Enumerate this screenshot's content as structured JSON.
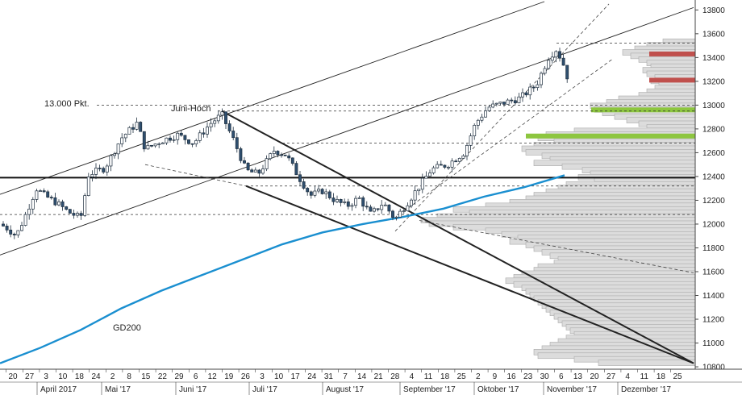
{
  "chart_data": {
    "type": "candlestick",
    "instrument_scale": "DAX points",
    "y_axis": {
      "position": "right",
      "ticks": [
        10800,
        11000,
        11200,
        11400,
        11600,
        11800,
        12000,
        12200,
        12400,
        12600,
        12800,
        13000,
        13200,
        13400,
        13600,
        13800
      ],
      "ylim": [
        10780,
        13870
      ]
    },
    "x_axis": {
      "day_ticks": [
        "20",
        "27",
        "3",
        "10",
        "18",
        "24",
        "2",
        "8",
        "15",
        "22",
        "29",
        "6",
        "12",
        "19",
        "26",
        "3",
        "10",
        "17",
        "24",
        "31",
        "7",
        "14",
        "21",
        "28",
        "4",
        "11",
        "18",
        "25",
        "2",
        "9",
        "16",
        "23",
        "30",
        "6",
        "13",
        "20",
        "27",
        "4",
        "11",
        "18",
        "25"
      ],
      "month_labels": [
        "April 2017",
        "Mai '17",
        "Juni '17",
        "Juli '17",
        "August '17",
        "September '17",
        "Oktober '17",
        "November '17",
        "Dezember '17"
      ]
    },
    "annotations": {
      "level_13000": "13.000 Pkt.",
      "june_high": "Juni-Hoch",
      "ma_label": "GD200"
    },
    "horizontal_levels": [
      {
        "kind": "support-bold",
        "value": 12390
      },
      {
        "kind": "dashed",
        "value": 13520
      },
      {
        "kind": "dashed",
        "value": 13000
      },
      {
        "kind": "dashed",
        "value": 12950
      },
      {
        "kind": "dashed",
        "value": 12680
      },
      {
        "kind": "dashed",
        "value": 12320
      },
      {
        "kind": "dashed",
        "value": 12080
      }
    ],
    "zones": [
      {
        "kind": "resistance",
        "color": "#c0504d",
        "value": 13430
      },
      {
        "kind": "resistance",
        "color": "#c0504d",
        "value": 13210
      },
      {
        "kind": "support",
        "color": "#8dc63f",
        "value": 12960
      },
      {
        "kind": "support",
        "color": "#8dc63f",
        "value": 12740
      }
    ],
    "series": [
      {
        "name": "GD200",
        "color": "#1a8fd0",
        "points": [
          [
            0,
            10830
          ],
          [
            50,
            10960
          ],
          [
            100,
            11110
          ],
          [
            150,
            11290
          ],
          [
            200,
            11440
          ],
          [
            250,
            11570
          ],
          [
            300,
            11700
          ],
          [
            350,
            11830
          ],
          [
            400,
            11930
          ],
          [
            450,
            12000
          ],
          [
            500,
            12060
          ],
          [
            550,
            12130
          ],
          [
            600,
            12230
          ],
          [
            650,
            12310
          ],
          [
            700,
            12410
          ]
        ]
      },
      {
        "name": "price",
        "points": [
          [
            0,
            12000
          ],
          [
            10,
            11960
          ],
          [
            20,
            11900
          ],
          [
            30,
            12050
          ],
          [
            45,
            12300
          ],
          [
            55,
            12240
          ],
          [
            70,
            12180
          ],
          [
            85,
            12100
          ],
          [
            100,
            12050
          ],
          [
            110,
            12420
          ],
          [
            130,
            12470
          ],
          [
            150,
            12720
          ],
          [
            170,
            12850
          ],
          [
            180,
            12630
          ],
          [
            200,
            12700
          ],
          [
            220,
            12750
          ],
          [
            240,
            12680
          ],
          [
            260,
            12840
          ],
          [
            275,
            12920
          ],
          [
            290,
            12700
          ],
          [
            305,
            12450
          ],
          [
            320,
            12420
          ],
          [
            340,
            12620
          ],
          [
            355,
            12580
          ],
          [
            370,
            12400
          ],
          [
            385,
            12240
          ],
          [
            400,
            12280
          ],
          [
            415,
            12200
          ],
          [
            430,
            12150
          ],
          [
            445,
            12220
          ],
          [
            460,
            12080
          ],
          [
            475,
            12180
          ],
          [
            490,
            12040
          ],
          [
            505,
            12180
          ],
          [
            520,
            12320
          ],
          [
            535,
            12460
          ],
          [
            555,
            12500
          ],
          [
            575,
            12600
          ],
          [
            590,
            12850
          ],
          [
            605,
            12980
          ],
          [
            625,
            13020
          ],
          [
            645,
            13060
          ],
          [
            665,
            13170
          ],
          [
            680,
            13400
          ],
          [
            690,
            13470
          ],
          [
            700,
            13320
          ],
          [
            707,
            13150
          ]
        ]
      }
    ],
    "trendlines": [
      {
        "from": [
          0,
          12250
        ],
        "to": [
          675,
          13870
        ],
        "style": "solid-thin"
      },
      {
        "from": [
          0,
          11740
        ],
        "to": [
          860,
          13820
        ],
        "style": "solid-thin"
      },
      {
        "from": [
          275,
          12950
        ],
        "to": [
          860,
          10830
        ],
        "style": "solid-bold"
      },
      {
        "from": [
          305,
          12320
        ],
        "to": [
          860,
          10830
        ],
        "style": "solid-bold"
      },
      {
        "from": [
          490,
          11940
        ],
        "to": [
          755,
          13850
        ],
        "style": "dashed"
      },
      {
        "from": [
          495,
          12080
        ],
        "to": [
          760,
          13390
        ],
        "style": "dashed"
      },
      {
        "from": [
          180,
          12500
        ],
        "to": [
          305,
          12320
        ],
        "style": "dashed"
      },
      {
        "from": [
          520,
          12030
        ],
        "to": [
          860,
          11590
        ],
        "style": "dashed"
      }
    ],
    "volume_profile": {
      "color": "#dcdcdc",
      "bins": [
        {
          "y": 13530,
          "len": 40
        },
        {
          "y": 13500,
          "len": 60
        },
        {
          "y": 13470,
          "len": 75
        },
        {
          "y": 13440,
          "len": 90
        },
        {
          "y": 13410,
          "len": 80
        },
        {
          "y": 13380,
          "len": 70
        },
        {
          "y": 13350,
          "len": 60
        },
        {
          "y": 13320,
          "len": 55
        },
        {
          "y": 13290,
          "len": 65
        },
        {
          "y": 13260,
          "len": 60
        },
        {
          "y": 13230,
          "len": 50
        },
        {
          "y": 13200,
          "len": 55
        },
        {
          "y": 13170,
          "len": 45
        },
        {
          "y": 13140,
          "len": 50
        },
        {
          "y": 13110,
          "len": 60
        },
        {
          "y": 13080,
          "len": 70
        },
        {
          "y": 13050,
          "len": 95
        },
        {
          "y": 13020,
          "len": 110
        },
        {
          "y": 12990,
          "len": 130
        },
        {
          "y": 12960,
          "len": 125
        },
        {
          "y": 12930,
          "len": 115
        },
        {
          "y": 12900,
          "len": 100
        },
        {
          "y": 12870,
          "len": 85
        },
        {
          "y": 12840,
          "len": 70
        },
        {
          "y": 12810,
          "len": 60
        },
        {
          "y": 12780,
          "len": 150
        },
        {
          "y": 12750,
          "len": 185
        },
        {
          "y": 12720,
          "len": 195
        },
        {
          "y": 12690,
          "len": 175
        },
        {
          "y": 12660,
          "len": 200
        },
        {
          "y": 12630,
          "len": 215
        },
        {
          "y": 12600,
          "len": 210
        },
        {
          "y": 12570,
          "len": 190
        },
        {
          "y": 12540,
          "len": 180
        },
        {
          "y": 12510,
          "len": 200
        },
        {
          "y": 12480,
          "len": 165
        },
        {
          "y": 12450,
          "len": 140
        },
        {
          "y": 12420,
          "len": 130
        },
        {
          "y": 12390,
          "len": 145
        },
        {
          "y": 12360,
          "len": 125
        },
        {
          "y": 12330,
          "len": 160
        },
        {
          "y": 12300,
          "len": 170
        },
        {
          "y": 12270,
          "len": 185
        },
        {
          "y": 12240,
          "len": 200
        },
        {
          "y": 12210,
          "len": 210
        },
        {
          "y": 12180,
          "len": 230
        },
        {
          "y": 12150,
          "len": 260
        },
        {
          "y": 12120,
          "len": 300
        },
        {
          "y": 12090,
          "len": 280
        },
        {
          "y": 12060,
          "len": 320
        },
        {
          "y": 12030,
          "len": 340
        },
        {
          "y": 12000,
          "len": 330
        },
        {
          "y": 11970,
          "len": 300
        },
        {
          "y": 11940,
          "len": 260
        },
        {
          "y": 11910,
          "len": 240
        },
        {
          "y": 11880,
          "len": 220
        },
        {
          "y": 11850,
          "len": 230
        },
        {
          "y": 11820,
          "len": 210
        },
        {
          "y": 11790,
          "len": 200
        },
        {
          "y": 11760,
          "len": 190
        },
        {
          "y": 11730,
          "len": 180
        },
        {
          "y": 11700,
          "len": 170
        },
        {
          "y": 11670,
          "len": 175
        },
        {
          "y": 11640,
          "len": 195
        },
        {
          "y": 11610,
          "len": 200
        },
        {
          "y": 11580,
          "len": 215
        },
        {
          "y": 11550,
          "len": 225
        },
        {
          "y": 11520,
          "len": 235
        },
        {
          "y": 11490,
          "len": 225
        },
        {
          "y": 11460,
          "len": 215
        },
        {
          "y": 11430,
          "len": 210
        },
        {
          "y": 11400,
          "len": 205
        },
        {
          "y": 11370,
          "len": 200
        },
        {
          "y": 11340,
          "len": 195
        },
        {
          "y": 11310,
          "len": 190
        },
        {
          "y": 11280,
          "len": 185
        },
        {
          "y": 11250,
          "len": 180
        },
        {
          "y": 11220,
          "len": 175
        },
        {
          "y": 11190,
          "len": 170
        },
        {
          "y": 11160,
          "len": 165
        },
        {
          "y": 11130,
          "len": 160
        },
        {
          "y": 11100,
          "len": 155
        },
        {
          "y": 11070,
          "len": 150
        },
        {
          "y": 11040,
          "len": 160
        },
        {
          "y": 11010,
          "len": 170
        },
        {
          "y": 10980,
          "len": 180
        },
        {
          "y": 10950,
          "len": 190
        },
        {
          "y": 10920,
          "len": 200
        },
        {
          "y": 10890,
          "len": 195
        },
        {
          "y": 10860,
          "len": 150
        },
        {
          "y": 10830,
          "len": 120
        }
      ]
    },
    "colors": {
      "bull_candle": "#ffffff",
      "bear_candle": "#2f4f6f",
      "ma": "#1a8fd0",
      "axis": "#444444"
    },
    "grid": false,
    "legend": "none"
  }
}
